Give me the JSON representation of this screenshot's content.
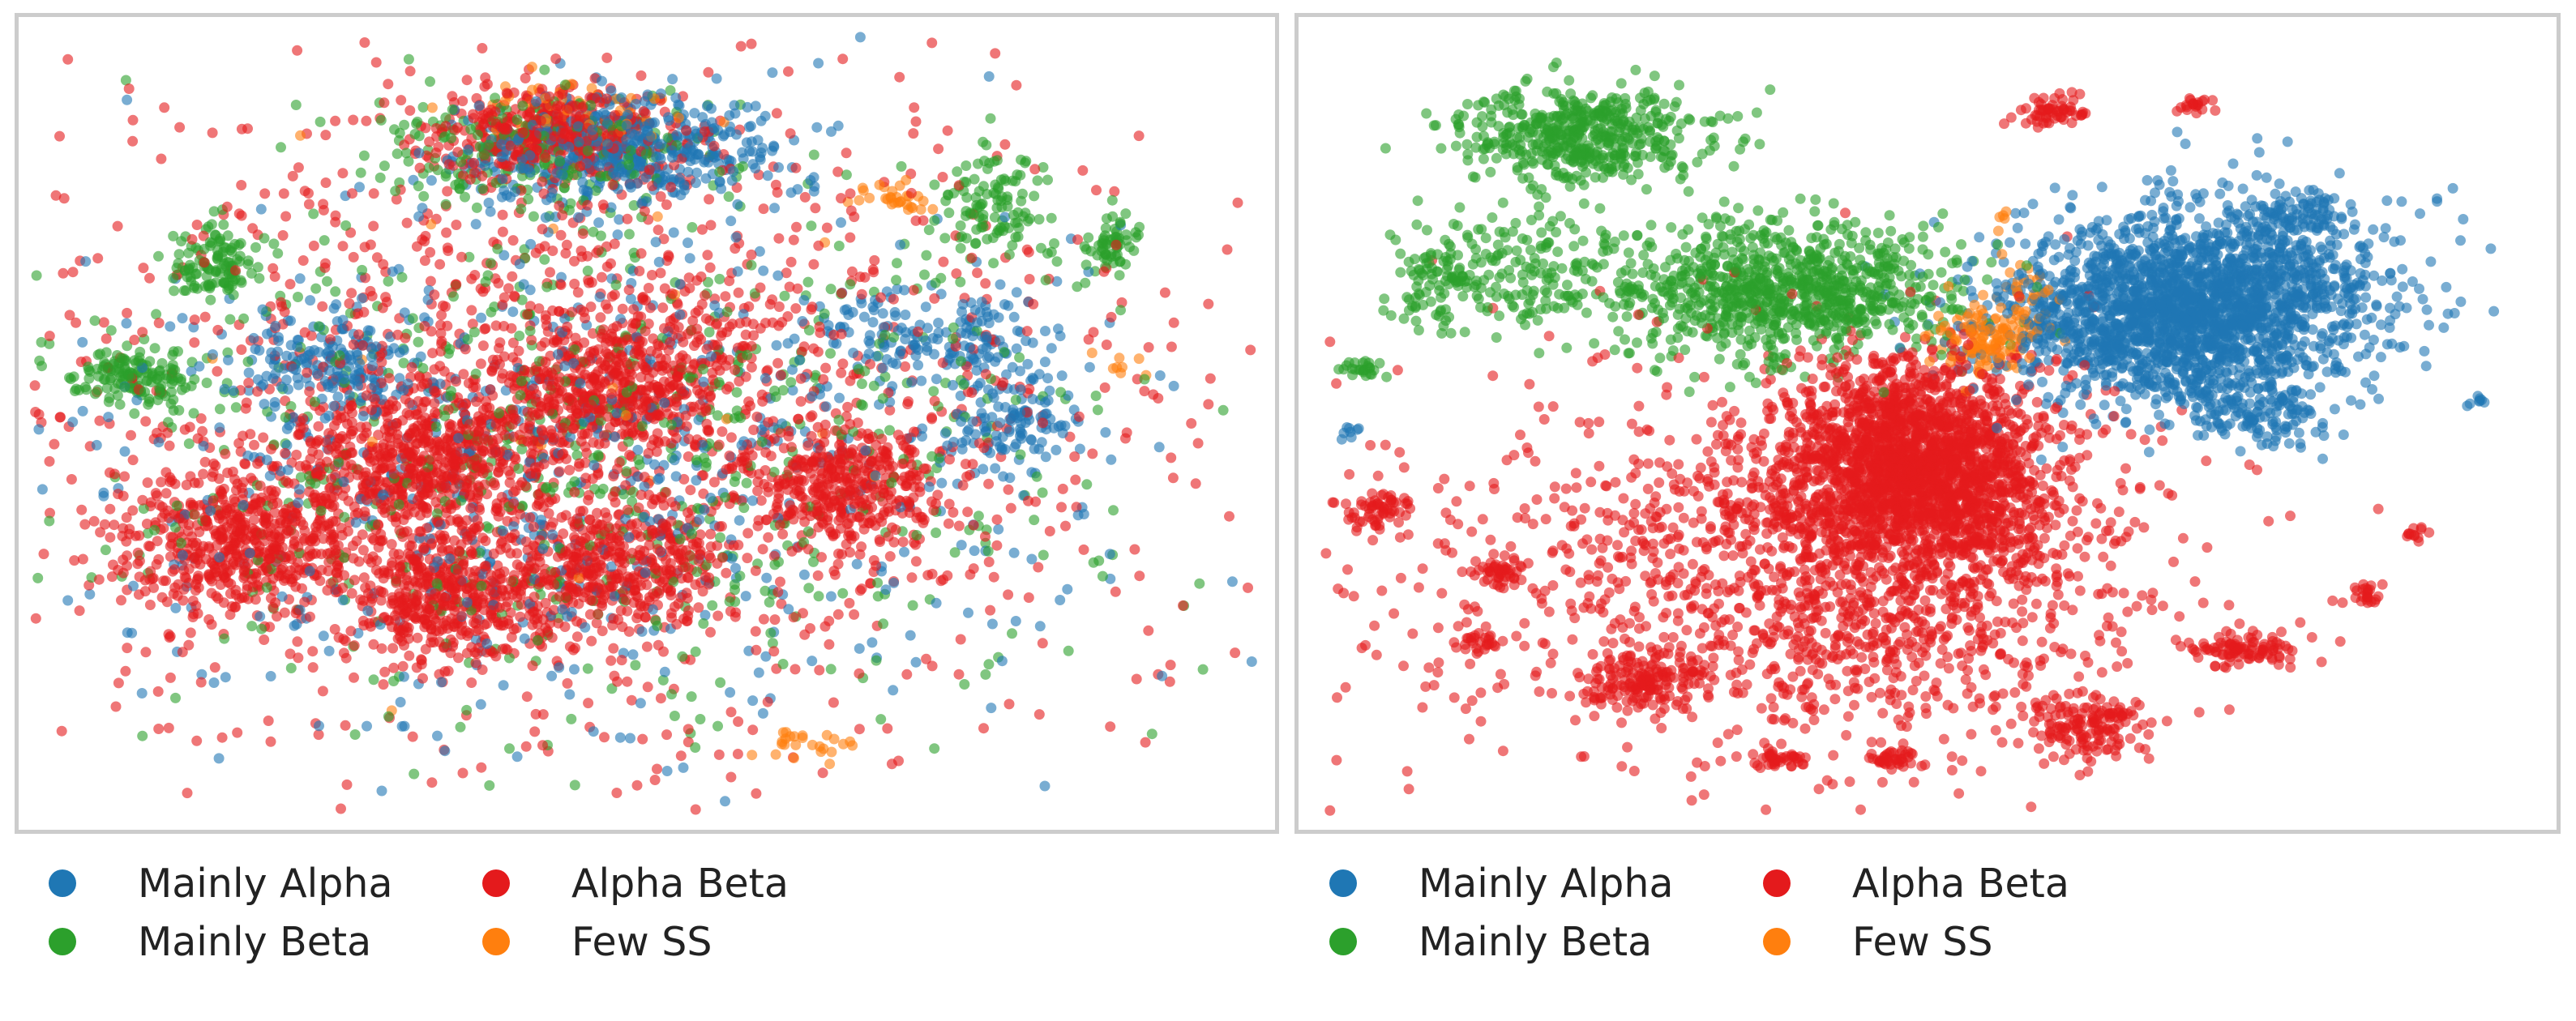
{
  "colors": {
    "mainly_alpha": "#1f77b4",
    "mainly_beta": "#2ca02c",
    "alpha_beta": "#e41a1c",
    "few_ss": "#ff7f0e"
  },
  "legend": [
    {
      "key": "mainly_alpha",
      "label": "Mainly Alpha"
    },
    {
      "key": "alpha_beta",
      "label": "Alpha Beta"
    },
    {
      "key": "mainly_beta",
      "label": "Mainly Beta"
    },
    {
      "key": "few_ss",
      "label": "Few SS"
    }
  ],
  "chart_data": [
    {
      "type": "scatter",
      "title": "",
      "xlabel": "",
      "ylabel": "",
      "grid": false,
      "axes_visible": false,
      "xlim": [
        0,
        100
      ],
      "ylim": [
        0,
        100
      ],
      "legend_placement": "bottom",
      "series": [
        {
          "name": "Mainly Alpha",
          "color_key": "mainly_alpha",
          "clusters": [
            {
              "x": 48,
              "y": 85,
              "sx": 6,
              "sy": 3.5,
              "n": 500
            },
            {
              "x": 24,
              "y": 57,
              "sx": 3.5,
              "sy": 3,
              "n": 160
            },
            {
              "x": 74,
              "y": 61,
              "sx": 5,
              "sy": 3,
              "n": 160
            },
            {
              "x": 80,
              "y": 50,
              "sx": 3,
              "sy": 3,
              "n": 120
            },
            {
              "x": 45,
              "y": 45,
              "sx": 20,
              "sy": 17,
              "n": 650
            }
          ]
        },
        {
          "name": "Mainly Beta",
          "color_key": "mainly_beta",
          "clusters": [
            {
              "x": 8,
              "y": 56,
              "sx": 2.5,
              "sy": 1.8,
              "n": 150
            },
            {
              "x": 15,
              "y": 70,
              "sx": 2,
              "sy": 2.5,
              "n": 120
            },
            {
              "x": 78,
              "y": 78,
              "sx": 2,
              "sy": 3,
              "n": 110
            },
            {
              "x": 88,
              "y": 73,
              "sx": 1.2,
              "sy": 2,
              "n": 60
            },
            {
              "x": 41,
              "y": 85,
              "sx": 7,
              "sy": 3.5,
              "n": 200
            },
            {
              "x": 48,
              "y": 48,
              "sx": 20,
              "sy": 18,
              "n": 700
            }
          ]
        },
        {
          "name": "Alpha Beta",
          "color_key": "alpha_beta",
          "clusters": [
            {
              "x": 42,
              "y": 87,
              "sx": 5,
              "sy": 3,
              "n": 450
            },
            {
              "x": 17,
              "y": 35,
              "sx": 5,
              "sy": 5,
              "n": 550
            },
            {
              "x": 32,
              "y": 45,
              "sx": 5,
              "sy": 5,
              "n": 550
            },
            {
              "x": 34,
              "y": 28,
              "sx": 4,
              "sy": 4,
              "n": 400
            },
            {
              "x": 48,
              "y": 32,
              "sx": 4,
              "sy": 4,
              "n": 350
            },
            {
              "x": 48,
              "y": 55,
              "sx": 5,
              "sy": 4,
              "n": 450
            },
            {
              "x": 66,
              "y": 42,
              "sx": 4,
              "sy": 3.5,
              "n": 350
            },
            {
              "x": 44,
              "y": 50,
              "sx": 22,
              "sy": 20,
              "n": 1700
            }
          ]
        },
        {
          "name": "Few SS",
          "color_key": "few_ss",
          "clusters": [
            {
              "x": 44,
              "y": 90,
              "sx": 4,
              "sy": 2,
              "n": 55
            },
            {
              "x": 70,
              "y": 79,
              "sx": 2,
              "sy": 1,
              "n": 30
            },
            {
              "x": 62,
              "y": 9,
              "sx": 2.5,
              "sy": 1,
              "n": 25
            },
            {
              "x": 89,
              "y": 58,
              "sx": 1,
              "sy": 1,
              "n": 8
            },
            {
              "x": 40,
              "y": 50,
              "sx": 18,
              "sy": 16,
              "n": 20
            }
          ]
        }
      ]
    },
    {
      "type": "scatter",
      "title": "",
      "xlabel": "",
      "ylabel": "",
      "grid": false,
      "axes_visible": false,
      "xlim": [
        0,
        100
      ],
      "ylim": [
        0,
        100
      ],
      "legend_placement": "bottom",
      "series": [
        {
          "name": "Mainly Alpha",
          "color_key": "mainly_alpha",
          "clusters": [
            {
              "x": 70,
              "y": 64,
              "sx": 7,
              "sy": 6,
              "n": 1800
            },
            {
              "x": 78,
              "y": 68,
              "sx": 6,
              "sy": 6,
              "n": 500
            },
            {
              "x": 77,
              "y": 51,
              "sx": 3,
              "sy": 2,
              "n": 120
            },
            {
              "x": 80,
              "y": 77,
              "sx": 2,
              "sy": 1.5,
              "n": 60
            },
            {
              "x": 3,
              "y": 49,
              "sx": 0.5,
              "sy": 0.5,
              "n": 8
            },
            {
              "x": 95,
              "y": 53,
              "sx": 0.5,
              "sy": 0.5,
              "n": 8
            }
          ]
        },
        {
          "name": "Mainly Beta",
          "color_key": "mainly_beta",
          "clusters": [
            {
              "x": 22,
              "y": 87,
              "sx": 5,
              "sy": 3,
              "n": 500
            },
            {
              "x": 38,
              "y": 67,
              "sx": 7,
              "sy": 4.5,
              "n": 900
            },
            {
              "x": 10,
              "y": 68,
              "sx": 2,
              "sy": 3,
              "n": 100
            },
            {
              "x": 4,
              "y": 57,
              "sx": 0.8,
              "sy": 0.6,
              "n": 25
            },
            {
              "x": 18,
              "y": 70,
              "sx": 4,
              "sy": 4,
              "n": 150
            }
          ]
        },
        {
          "name": "Alpha Beta",
          "color_key": "alpha_beta",
          "clusters": [
            {
              "x": 49,
              "y": 45,
              "sx": 5,
              "sy": 6,
              "n": 1800
            },
            {
              "x": 45,
              "y": 33,
              "sx": 11,
              "sy": 11,
              "n": 1400
            },
            {
              "x": 30,
              "y": 30,
              "sx": 18,
              "sy": 15,
              "n": 500
            },
            {
              "x": 60,
              "y": 90,
              "sx": 1.5,
              "sy": 1,
              "n": 60
            },
            {
              "x": 72,
              "y": 91,
              "sx": 0.8,
              "sy": 0.6,
              "n": 20
            },
            {
              "x": 5,
              "y": 39,
              "sx": 1.2,
              "sy": 1.2,
              "n": 60
            },
            {
              "x": 15,
              "y": 31,
              "sx": 0.9,
              "sy": 0.7,
              "n": 40
            },
            {
              "x": 13,
              "y": 22,
              "sx": 0.8,
              "sy": 0.5,
              "n": 25
            },
            {
              "x": 27,
              "y": 17,
              "sx": 2.2,
              "sy": 1.8,
              "n": 150
            },
            {
              "x": 38,
              "y": 7,
              "sx": 1.2,
              "sy": 0.6,
              "n": 40
            },
            {
              "x": 47,
              "y": 7,
              "sx": 1.2,
              "sy": 0.6,
              "n": 40
            },
            {
              "x": 63,
              "y": 11,
              "sx": 2.3,
              "sy": 2,
              "n": 150
            },
            {
              "x": 76,
              "y": 21,
              "sx": 2.3,
              "sy": 1.2,
              "n": 100
            },
            {
              "x": 86,
              "y": 28,
              "sx": 0.8,
              "sy": 0.7,
              "n": 25
            },
            {
              "x": 90,
              "y": 36,
              "sx": 0.6,
              "sy": 0.6,
              "n": 12
            }
          ]
        },
        {
          "name": "Few SS",
          "color_key": "few_ss",
          "clusters": [
            {
              "x": 55,
              "y": 61,
              "sx": 2.2,
              "sy": 2.2,
              "n": 130
            },
            {
              "x": 56,
              "y": 76,
              "sx": 0.4,
              "sy": 1,
              "n": 5
            },
            {
              "x": 58,
              "y": 67,
              "sx": 1.5,
              "sy": 2,
              "n": 25
            }
          ]
        }
      ]
    }
  ]
}
